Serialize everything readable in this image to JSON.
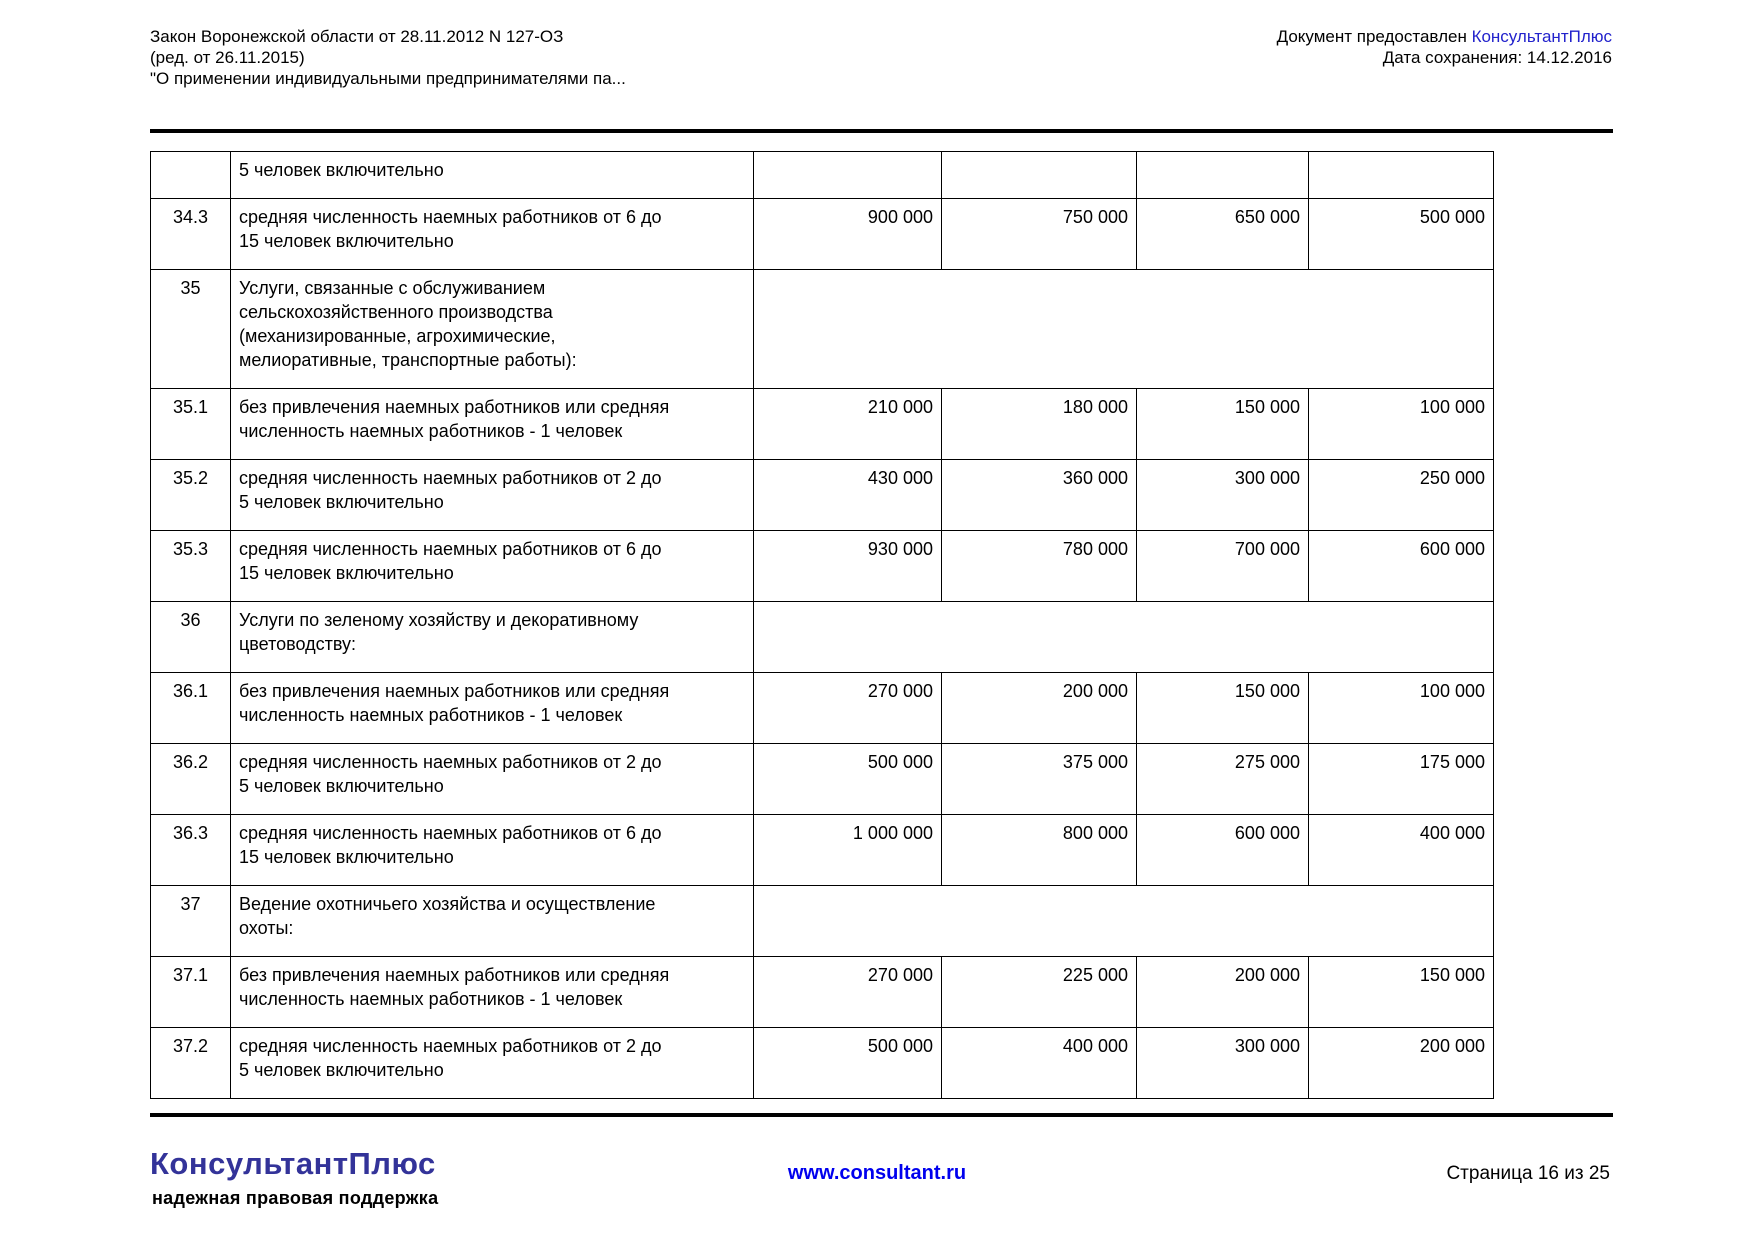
{
  "header": {
    "title_lines": [
      "Закон Воронежской области от 28.11.2012 N 127-ОЗ",
      "(ред. от 26.11.2015)",
      "\"О применении индивидуальными предпринимателями па..."
    ],
    "provided_prefix": "Документ предоставлен ",
    "provided_link_label": "КонсультантПлюс",
    "saved_date_label": "Дата сохранения: 14.12.2016"
  },
  "table": {
    "rows": [
      {
        "num": "",
        "desc": "5 человек включительно",
        "merged": false,
        "values": [
          "",
          "",
          "",
          ""
        ]
      },
      {
        "num": "34.3",
        "desc": "средняя численность наемных работников от 6 до\n15 человек включительно",
        "merged": false,
        "values": [
          "900 000",
          "750 000",
          "650 000",
          "500 000"
        ]
      },
      {
        "num": "35",
        "desc": "Услуги, связанные с обслуживанием\nсельскохозяйственного производства\n(механизированные, агрохимические,\nмелиоративные, транспортные работы):",
        "merged": true,
        "values": []
      },
      {
        "num": "35.1",
        "desc": "без привлечения наемных работников или средняя\nчисленность наемных работников - 1 человек",
        "merged": false,
        "values": [
          "210 000",
          "180 000",
          "150 000",
          "100 000"
        ]
      },
      {
        "num": "35.2",
        "desc": "средняя численность наемных работников от 2 до\n5 человек включительно",
        "merged": false,
        "values": [
          "430 000",
          "360 000",
          "300 000",
          "250 000"
        ]
      },
      {
        "num": "35.3",
        "desc": "средняя численность наемных работников от 6 до\n15 человек включительно",
        "merged": false,
        "values": [
          "930 000",
          "780 000",
          "700 000",
          "600 000"
        ]
      },
      {
        "num": "36",
        "desc": "Услуги по зеленому хозяйству и декоративному\nцветоводству:",
        "merged": true,
        "values": []
      },
      {
        "num": "36.1",
        "desc": "без привлечения наемных работников или средняя\nчисленность наемных работников - 1 человек",
        "merged": false,
        "values": [
          "270 000",
          "200 000",
          "150 000",
          "100 000"
        ]
      },
      {
        "num": "36.2",
        "desc": "средняя численность наемных работников от 2 до\n5 человек включительно",
        "merged": false,
        "values": [
          "500 000",
          "375 000",
          "275 000",
          "175 000"
        ]
      },
      {
        "num": "36.3",
        "desc": "средняя численность наемных работников от 6 до\n15 человек включительно",
        "merged": false,
        "values": [
          "1 000 000",
          "800 000",
          "600 000",
          "400 000"
        ]
      },
      {
        "num": "37",
        "desc": "Ведение охотничьего хозяйства и осуществление\nохоты:",
        "merged": true,
        "values": []
      },
      {
        "num": "37.1",
        "desc": "без привлечения наемных работников или средняя\nчисленность наемных работников - 1 человек",
        "merged": false,
        "values": [
          "270 000",
          "225 000",
          "200 000",
          "150 000"
        ]
      },
      {
        "num": "37.2",
        "desc": "средняя численность наемных работников от 2 до\n5 человек включительно",
        "merged": false,
        "values": [
          "500 000",
          "400 000",
          "300 000",
          "200 000"
        ]
      }
    ]
  },
  "footer": {
    "logo_text": "КонсультантПлюс",
    "tagline": "надежная правовая поддержка",
    "website": "www.consultant.ru",
    "page_indicator": "Страница 16 из 25"
  },
  "colors": {
    "header_link": "#2222CC",
    "logo": "#333399",
    "website_link": "#0000EE",
    "text": "#000000",
    "table_border": "#000000"
  }
}
